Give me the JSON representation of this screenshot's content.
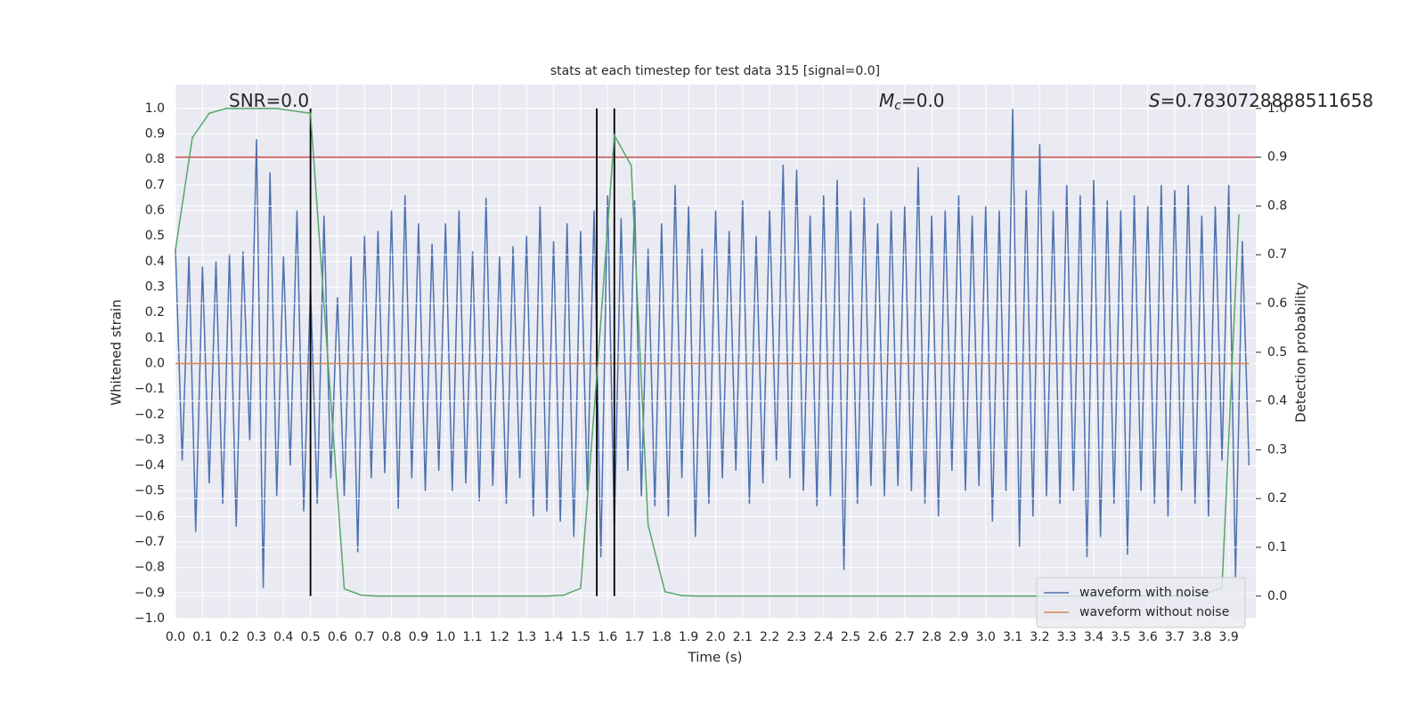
{
  "chart_data": {
    "type": "line",
    "title": "stats at each timestep for test data 315 [signal=0.0]",
    "xlabel": "Time (s)",
    "ylabel": "Whitened strain",
    "y2label": "Detection probability",
    "annotations": [
      {
        "text": "SNR=0.0"
      },
      {
        "symbol": "M",
        "sub": "c",
        "text": "=0.0"
      },
      {
        "symbol": "S",
        "text": "=0.7830728888511658"
      }
    ],
    "xlim": [
      0,
      4.0
    ],
    "ylim": [
      -1.0,
      1.094
    ],
    "y2lim": [
      -0.046,
      1.049
    ],
    "xticks": [
      {
        "value": 0,
        "label": "0.0"
      },
      0.1,
      0.2,
      0.3,
      0.4,
      0.5,
      0.6,
      0.7,
      0.8,
      0.9,
      {
        "value": 1,
        "label": "1.0"
      },
      1.1,
      1.2,
      1.3,
      1.4,
      1.5,
      1.6,
      1.7,
      1.8,
      1.9,
      {
        "value": 2,
        "label": "2.0"
      },
      2.1,
      2.2,
      2.3,
      2.4,
      2.5,
      2.6,
      2.7,
      2.8,
      2.9,
      {
        "value": 3,
        "label": "3.0"
      },
      3.1,
      3.2,
      3.3,
      3.4,
      3.5,
      3.6,
      3.7,
      3.8,
      3.9
    ],
    "yticks": [
      {
        "value": -1.0,
        "label": "−1.0"
      },
      {
        "value": -0.9,
        "label": "−0.9"
      },
      {
        "value": -0.8,
        "label": "−0.8"
      },
      {
        "value": -0.7,
        "label": "−0.7"
      },
      {
        "value": -0.6,
        "label": "−0.6"
      },
      {
        "value": -0.5,
        "label": "−0.5"
      },
      {
        "value": -0.4,
        "label": "−0.4"
      },
      {
        "value": -0.3,
        "label": "−0.3"
      },
      {
        "value": -0.2,
        "label": "−0.2"
      },
      {
        "value": -0.1,
        "label": "−0.1"
      },
      {
        "value": 0,
        "label": "0.0"
      },
      0.1,
      0.2,
      0.3,
      0.4,
      0.5,
      0.6,
      0.7,
      0.8,
      0.9,
      {
        "value": 1,
        "label": "1.0"
      }
    ],
    "y2ticks": [
      {
        "value": 0,
        "label": "0.0"
      },
      0.1,
      0.2,
      0.3,
      0.4,
      0.5,
      0.6,
      0.7,
      0.8,
      0.9,
      {
        "value": 1,
        "label": "1.0"
      }
    ],
    "grid": true,
    "legend": "lower right",
    "threshold": {
      "value": 0.9,
      "axis": "y2",
      "color": "#c44e52"
    },
    "vlines": {
      "x": [
        0.5,
        1.56,
        1.625
      ],
      "from": 0,
      "to": 1,
      "axis": "y2",
      "color": "#000000"
    },
    "series": [
      {
        "name": "waveform with noise",
        "color": "#4c72b0",
        "x": [
          0,
          0.025,
          0.05,
          0.075,
          0.1,
          0.125,
          0.15,
          0.175,
          0.2,
          0.225,
          0.25,
          0.275,
          0.3,
          0.325,
          0.35,
          0.375,
          0.4,
          0.425,
          0.45,
          0.475,
          0.5,
          0.525,
          0.55,
          0.575,
          0.6,
          0.625,
          0.65,
          0.675,
          0.7,
          0.725,
          0.75,
          0.775,
          0.8,
          0.825,
          0.85,
          0.875,
          0.9,
          0.925,
          0.95,
          0.975,
          1,
          1.025,
          1.05,
          1.075,
          1.1,
          1.125,
          1.15,
          1.175,
          1.2,
          1.225,
          1.25,
          1.275,
          1.3,
          1.325,
          1.35,
          1.375,
          1.4,
          1.425,
          1.45,
          1.475,
          1.5,
          1.525,
          1.55,
          1.575,
          1.6,
          1.625,
          1.65,
          1.675,
          1.7,
          1.725,
          1.75,
          1.775,
          1.8,
          1.825,
          1.85,
          1.875,
          1.9,
          1.925,
          1.95,
          1.975,
          2,
          2.025,
          2.05,
          2.075,
          2.1,
          2.125,
          2.15,
          2.175,
          2.2,
          2.225,
          2.25,
          2.275,
          2.3,
          2.325,
          2.35,
          2.375,
          2.4,
          2.425,
          2.45,
          2.475,
          2.5,
          2.525,
          2.55,
          2.575,
          2.6,
          2.625,
          2.65,
          2.675,
          2.7,
          2.725,
          2.75,
          2.775,
          2.8,
          2.825,
          2.85,
          2.875,
          2.9,
          2.925,
          2.95,
          2.975,
          3,
          3.025,
          3.05,
          3.075,
          3.1,
          3.125,
          3.15,
          3.175,
          3.2,
          3.225,
          3.25,
          3.275,
          3.3,
          3.325,
          3.35,
          3.375,
          3.4,
          3.425,
          3.45,
          3.475,
          3.5,
          3.525,
          3.55,
          3.575,
          3.6,
          3.625,
          3.65,
          3.675,
          3.7,
          3.725,
          3.75,
          3.775,
          3.8,
          3.825,
          3.85,
          3.875,
          3.9,
          3.925,
          3.95,
          3.975
        ],
        "values": [
          0.45,
          -0.38,
          0.42,
          -0.66,
          0.38,
          -0.47,
          0.4,
          -0.55,
          0.43,
          -0.64,
          0.44,
          -0.3,
          0.88,
          -0.88,
          0.75,
          -0.52,
          0.42,
          -0.4,
          0.6,
          -0.58,
          0.3,
          -0.55,
          0.58,
          -0.45,
          0.26,
          -0.52,
          0.42,
          -0.74,
          0.5,
          -0.45,
          0.52,
          -0.43,
          0.6,
          -0.57,
          0.66,
          -0.45,
          0.55,
          -0.5,
          0.47,
          -0.42,
          0.55,
          -0.5,
          0.6,
          -0.47,
          0.44,
          -0.54,
          0.65,
          -0.48,
          0.42,
          -0.55,
          0.46,
          -0.45,
          0.5,
          -0.6,
          0.62,
          -0.58,
          0.48,
          -0.62,
          0.55,
          -0.68,
          0.52,
          -0.5,
          0.6,
          -0.76,
          0.66,
          -0.65,
          0.57,
          -0.42,
          0.64,
          -0.52,
          0.45,
          -0.56,
          0.55,
          -0.6,
          0.7,
          -0.45,
          0.62,
          -0.68,
          0.45,
          -0.55,
          0.6,
          -0.45,
          0.52,
          -0.42,
          0.64,
          -0.55,
          0.5,
          -0.47,
          0.6,
          -0.38,
          0.78,
          -0.45,
          0.76,
          -0.5,
          0.58,
          -0.56,
          0.66,
          -0.52,
          0.72,
          -0.81,
          0.6,
          -0.55,
          0.65,
          -0.48,
          0.55,
          -0.52,
          0.6,
          -0.48,
          0.62,
          -0.5,
          0.77,
          -0.55,
          0.58,
          -0.6,
          0.6,
          -0.42,
          0.66,
          -0.5,
          0.58,
          -0.48,
          0.62,
          -0.62,
          0.6,
          -0.5,
          1.0,
          -0.72,
          0.68,
          -0.6,
          0.86,
          -0.52,
          0.6,
          -0.55,
          0.7,
          -0.5,
          0.66,
          -0.76,
          0.72,
          -0.68,
          0.64,
          -0.55,
          0.6,
          -0.75,
          0.66,
          -0.5,
          0.62,
          -0.55,
          0.7,
          -0.6,
          0.68,
          -0.5,
          0.7,
          -0.55,
          0.58,
          -0.6,
          0.62,
          -0.38,
          0.7,
          -0.84,
          0.48,
          -0.4
        ]
      },
      {
        "name": "waveform without noise",
        "color": "#dd8452",
        "x": [
          0,
          3.975
        ],
        "values": [
          0,
          0
        ]
      },
      {
        "color": "#55a868",
        "axis": "y2",
        "x": [
          0,
          0.0625,
          0.125,
          0.1875,
          0.25,
          0.3125,
          0.375,
          0.4375,
          0.5,
          0.5625,
          0.625,
          0.6875,
          0.75,
          0.8125,
          0.875,
          0.9375,
          1,
          1.0625,
          1.125,
          1.1875,
          1.25,
          1.3125,
          1.375,
          1.4375,
          1.5,
          1.5625,
          1.625,
          1.6875,
          1.75,
          1.8125,
          1.875,
          1.9375,
          2,
          2.0625,
          2.125,
          2.1875,
          2.25,
          2.3125,
          2.375,
          2.4375,
          2.5,
          2.5625,
          2.625,
          2.6875,
          2.75,
          2.8125,
          2.875,
          2.9375,
          3,
          3.0625,
          3.125,
          3.1875,
          3.25,
          3.3125,
          3.375,
          3.4375,
          3.5,
          3.5625,
          3.625,
          3.6875,
          3.75,
          3.8125,
          3.875,
          3.9375
        ],
        "values": [
          0.71,
          0.94,
          0.99,
          1.0,
          1.0,
          1.0,
          1.0,
          0.995,
          0.99,
          0.5,
          0.015,
          0.002,
          0,
          0,
          0,
          0,
          0,
          0,
          0,
          0,
          0,
          0,
          0,
          0.002,
          0.016,
          0.47,
          0.945,
          0.883,
          0.146,
          0.009,
          0.001,
          0,
          0,
          0,
          0,
          0,
          0,
          0,
          0,
          0,
          0,
          0,
          0,
          0,
          0,
          0,
          0,
          0,
          0,
          0,
          0,
          0,
          0,
          0,
          0,
          0,
          0,
          0,
          0,
          0,
          0,
          0.004,
          0.018,
          0.783
        ]
      }
    ]
  }
}
